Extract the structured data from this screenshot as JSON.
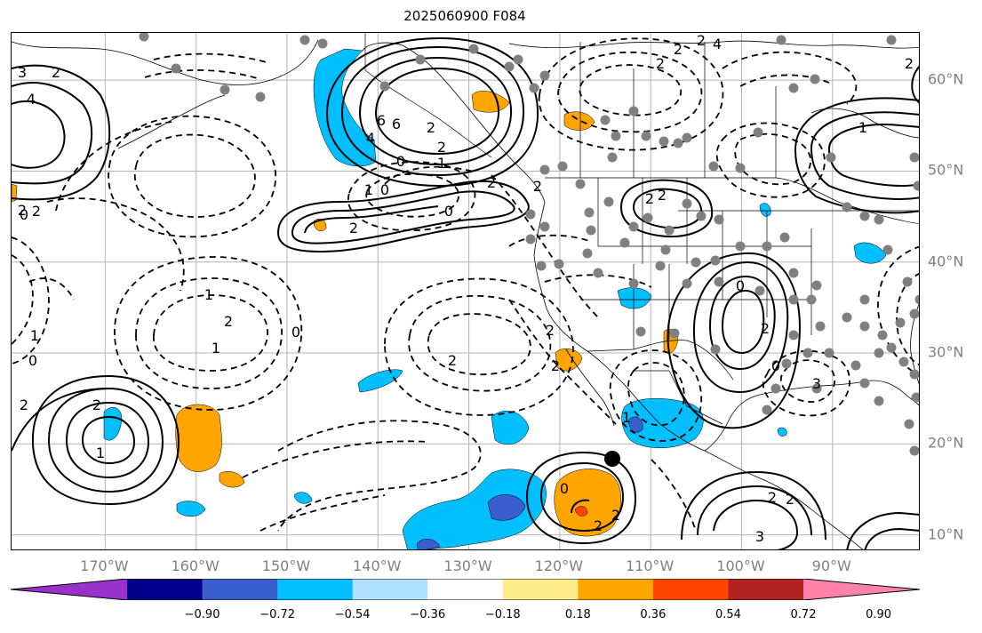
{
  "title": "2025060900 F084",
  "lon_labels": [
    {
      "text": "170°W",
      "lon": -170
    },
    {
      "text": "160°W",
      "lon": -160
    },
    {
      "text": "150°W",
      "lon": -150
    },
    {
      "text": "140°W",
      "lon": -140
    },
    {
      "text": "130°W",
      "lon": -130
    },
    {
      "text": "120°W",
      "lon": -120
    },
    {
      "text": "110°W",
      "lon": -110
    },
    {
      "text": "100°W",
      "lon": -100
    },
    {
      "text": "90°W",
      "lon": -90
    }
  ],
  "lat_labels": [
    {
      "text": "60°N",
      "lat": 60
    },
    {
      "text": "50°N",
      "lat": 50
    },
    {
      "text": "40°N",
      "lat": 40
    },
    {
      "text": "30°N",
      "lat": 30
    },
    {
      "text": "20°N",
      "lat": 20
    },
    {
      "text": "10°N",
      "lat": 10
    }
  ],
  "colorbar": {
    "colors": [
      "#9932cc",
      "#00008b",
      "#3a5fcd",
      "#00bfff",
      "#b0e2ff",
      "#ffffff",
      "#ffec8b",
      "#ffa500",
      "#ff4500",
      "#b22222",
      "#ff82ab"
    ],
    "ticks": [
      "−0.90",
      "−0.72",
      "−0.54",
      "−0.36",
      "−0.18",
      "0.18",
      "0.36",
      "0.54",
      "0.72",
      "0.90"
    ]
  },
  "contour_labels": [
    "3",
    "2",
    "4",
    "6",
    "6",
    "0",
    "1",
    "4",
    "2",
    "2",
    "2",
    "2",
    "0",
    "2",
    "2",
    "2",
    "2",
    "1",
    "2",
    "1",
    "0",
    "2",
    "2",
    "1",
    "2",
    "0",
    "1",
    "0",
    "0",
    "1",
    "2",
    "2",
    "2",
    "1",
    "0",
    "2",
    "0",
    "3",
    "3",
    "2",
    "2",
    "2",
    "2",
    "2",
    "4",
    "2",
    "1",
    "0",
    "2",
    "2"
  ],
  "colors": {
    "grid": "#b4b4b4",
    "contour": "#000000",
    "dot": "#808080",
    "label": "#808080"
  }
}
